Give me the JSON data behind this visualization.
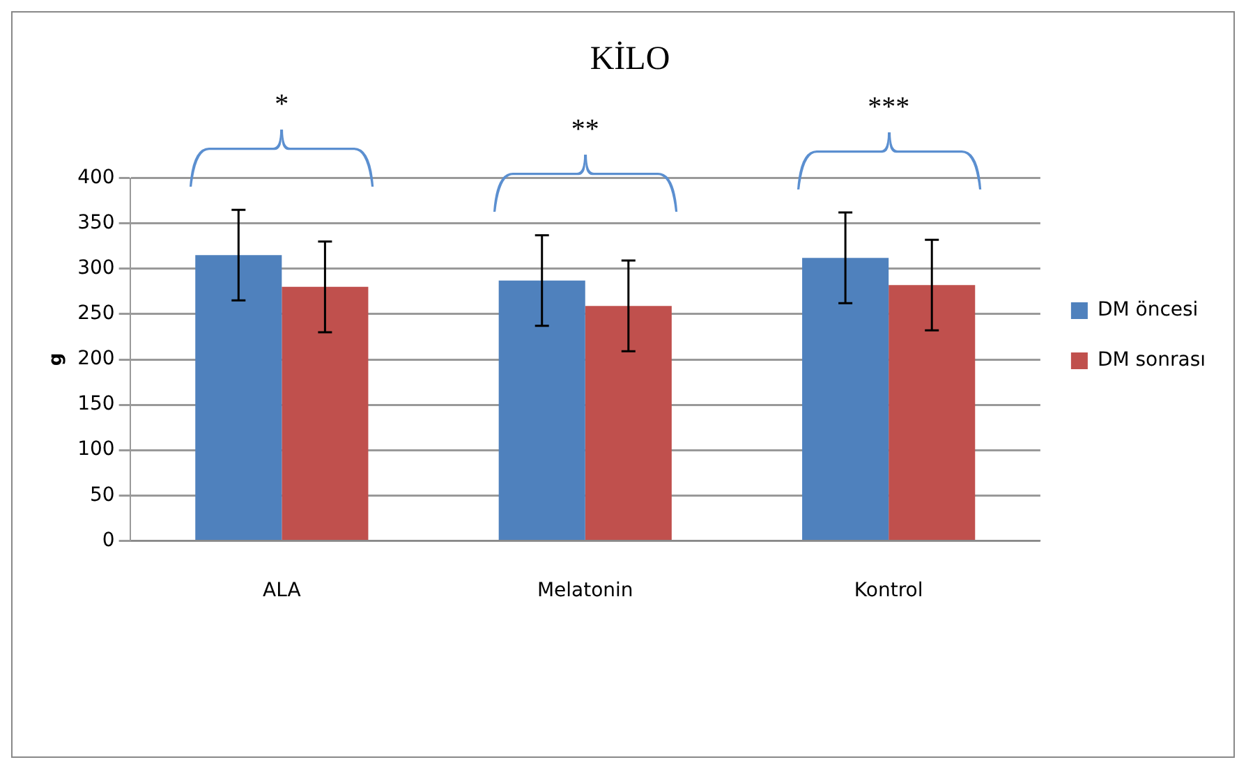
{
  "chart_data": {
    "type": "bar",
    "title": "KİLO",
    "ylabel": "g",
    "categories": [
      "ALA",
      "Melatonin",
      "Kontrol"
    ],
    "series": [
      {
        "name": "DM öncesi",
        "color": "#4f81bd",
        "values": [
          315,
          287,
          312
        ],
        "errors": [
          50,
          50,
          50
        ]
      },
      {
        "name": "DM sonrası",
        "color": "#c0504d",
        "values": [
          280,
          259,
          282
        ],
        "errors": [
          50,
          50,
          50
        ]
      }
    ],
    "ylim": [
      0,
      400
    ],
    "yticks": [
      0,
      50,
      100,
      150,
      200,
      250,
      300,
      350,
      400
    ],
    "grid": "y",
    "legend": "right",
    "annotations": [
      "*",
      "**",
      "***"
    ]
  }
}
